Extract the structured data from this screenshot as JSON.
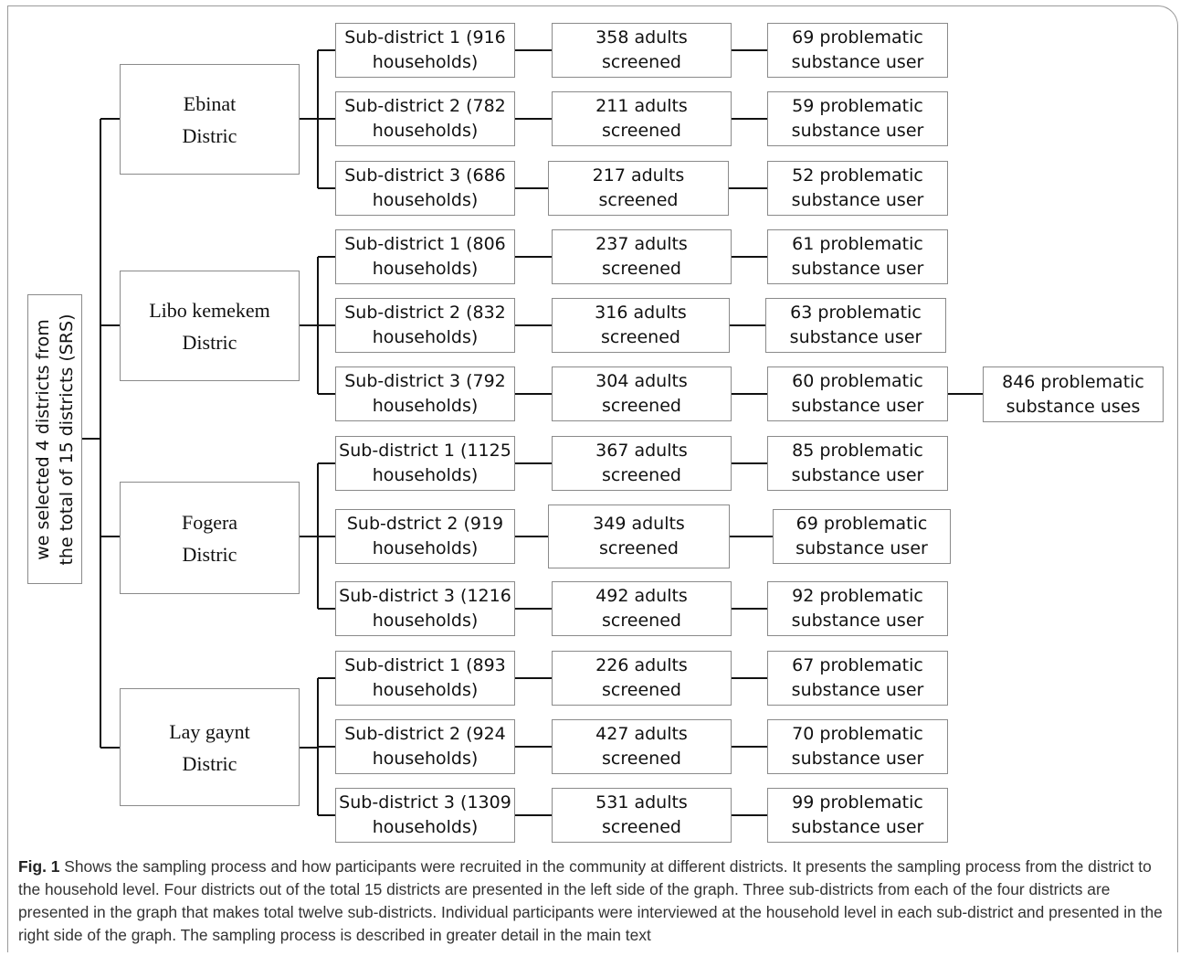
{
  "root": {
    "line1": "we selected  4 districts from",
    "line2": "the total of 15 districts (SRS)"
  },
  "districts": [
    {
      "name": "Ebinat",
      "suffix": "Distric"
    },
    {
      "name": "Libo kemekem",
      "suffix": "Distric"
    },
    {
      "name": "Fogera",
      "suffix": "Distric"
    },
    {
      "name": "Lay gaynt",
      "suffix": "Distric"
    }
  ],
  "rows": [
    {
      "sub1": "Sub-district 1 (916",
      "sub2": "households)",
      "ad1": "358 adults",
      "ad2": "screened",
      "us1": "69 problematic",
      "us2": "substance user"
    },
    {
      "sub1": "Sub-district 2 (782",
      "sub2": "households)",
      "ad1": "211 adults",
      "ad2": "screened",
      "us1": "59 problematic",
      "us2": "substance user"
    },
    {
      "sub1": "Sub-district 3 (686",
      "sub2": "households)",
      "ad1": "217 adults",
      "ad2": "screened",
      "us1": "52  problematic",
      "us2": "substance user"
    },
    {
      "sub1": "Sub-district 1 (806",
      "sub2": "households)",
      "ad1": "237 adults",
      "ad2": "screened",
      "us1": "61 problematic",
      "us2": "substance user"
    },
    {
      "sub1": "Sub-district 2 (832",
      "sub2": "households)",
      "ad1": "316 adults",
      "ad2": "screened",
      "us1": "63 problematic",
      "us2": "substance user"
    },
    {
      "sub1": "Sub-district 3 (792",
      "sub2": "households)",
      "ad1": "304 adults",
      "ad2": "screened",
      "us1": "60 problematic",
      "us2": "substance user"
    },
    {
      "sub1": "Sub-district 1 (1125",
      "sub2": "households)",
      "ad1": "367 adults",
      "ad2": "screened",
      "us1": "85 problematic",
      "us2": "substance user"
    },
    {
      "sub1": "Sub-dstrict 2 (919",
      "sub2": "households)",
      "ad1": "349 adults",
      "ad2": "screened",
      "us1": "69 problematic",
      "us2": "substance user"
    },
    {
      "sub1": "Sub-district 3 (1216",
      "sub2": "households)",
      "ad1": "492 adults",
      "ad2": "screened",
      "us1": "92 problematic",
      "us2": "substance user"
    },
    {
      "sub1": "Sub-district 1 (893",
      "sub2": "households)",
      "ad1": "226 adults",
      "ad2": "screened",
      "us1": "67 problematic",
      "us2": "substance user"
    },
    {
      "sub1": "Sub-district 2 (924",
      "sub2": "households)",
      "ad1": "427 adults",
      "ad2": "screened",
      "us1": "70 problematic",
      "us2": "substance user"
    },
    {
      "sub1": "Sub-district 3 (1309",
      "sub2": "households)",
      "ad1": "531 adults",
      "ad2": "screened",
      "us1": "99 problematic",
      "us2": "substance user"
    }
  ],
  "total": {
    "line1": "846 problematic",
    "line2": "substance uses"
  },
  "caption": {
    "fig_label": "Fig. 1",
    "text": " Shows the sampling process and how participants were recruited in the community at different districts. It presents the sampling process from the district to the household level. Four districts out of the total 15 districts are presented in the left side of the graph. Three sub-districts from each of the four districts are presented in the graph that makes total twelve sub-districts. Individual participants were interviewed at the household level in each sub-district and presented in the right side of the graph. The sampling process is described in greater detail in the main text"
  }
}
